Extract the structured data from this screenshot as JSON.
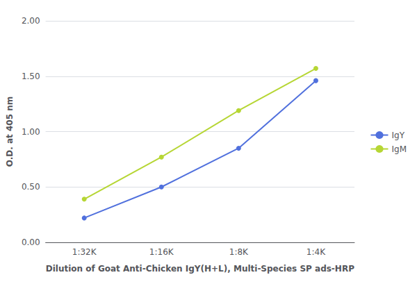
{
  "chart_data": {
    "type": "line",
    "xlabel": "Dilution of Goat Anti-Chicken IgY(H+L), Multi-Species SP ads-HRP",
    "ylabel": "O.D. at 405 nm",
    "categories": [
      "1:32K",
      "1:16K",
      "1:8K",
      "1:4K"
    ],
    "series": [
      {
        "name": "IgY",
        "values": [
          0.22,
          0.5,
          0.85,
          1.46
        ]
      },
      {
        "name": "IgM",
        "values": [
          0.39,
          0.77,
          1.19,
          1.57
        ]
      }
    ],
    "ylim": [
      0.0,
      2.0
    ],
    "yticks": [
      {
        "value": 0.0,
        "label": "0.00"
      },
      {
        "value": 0.5,
        "label": "0.50"
      },
      {
        "value": 1.0,
        "label": "1.00"
      },
      {
        "value": 1.5,
        "label": "1.50"
      },
      {
        "value": 2.0,
        "label": "2.00"
      }
    ],
    "grid": true,
    "legend": "right",
    "marker": "circle"
  }
}
